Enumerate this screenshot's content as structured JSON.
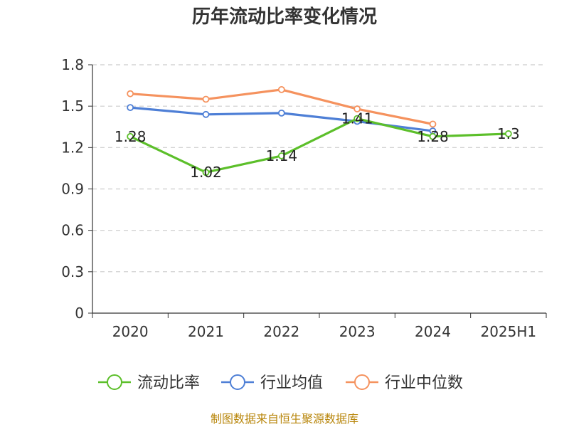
{
  "chart_data": {
    "type": "line",
    "title": "历年流动比率变化情况",
    "categories": [
      "2020",
      "2021",
      "2022",
      "2023",
      "2024",
      "2025H1"
    ],
    "yticks": [
      "0",
      "0.3",
      "0.6",
      "0.9",
      "1.2",
      "1.5",
      "1.8"
    ],
    "ylim": [
      0,
      1.8
    ],
    "grid": true,
    "legend_position": "bottom",
    "series": [
      {
        "name": "流动比率",
        "color": "#5cbf2a",
        "values": [
          1.28,
          1.02,
          1.14,
          1.41,
          1.28,
          1.3
        ],
        "labels": [
          "1.28",
          "1.02",
          "1.14",
          "1.41",
          "1.28",
          "1.3"
        ]
      },
      {
        "name": "行业均值",
        "color": "#4e7fd6",
        "values": [
          1.49,
          1.44,
          1.45,
          1.39,
          1.32,
          null
        ]
      },
      {
        "name": "行业中位数",
        "color": "#f5925e",
        "values": [
          1.59,
          1.55,
          1.62,
          1.48,
          1.37,
          null
        ]
      }
    ]
  },
  "source": "制图数据来自恒生聚源数据库"
}
